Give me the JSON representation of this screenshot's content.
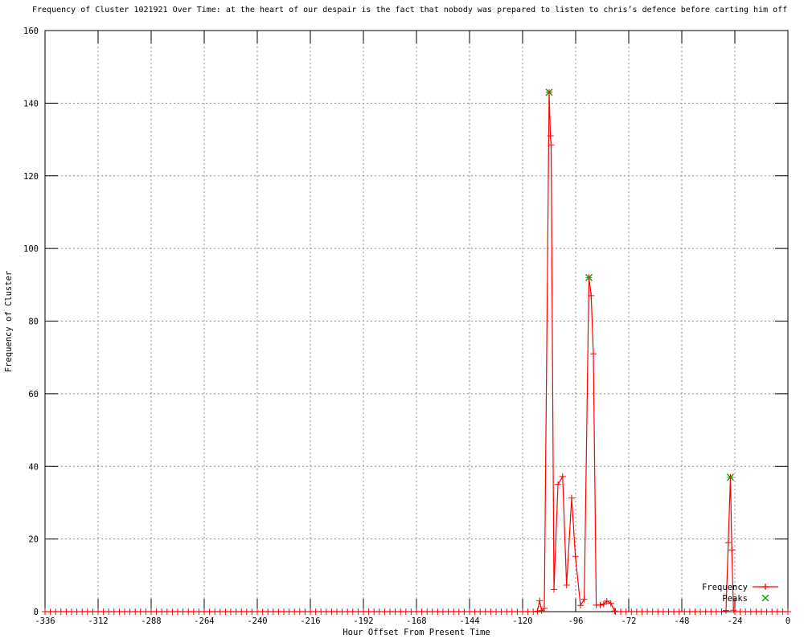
{
  "chart_data": {
    "type": "line",
    "title": "Frequency of Cluster 1021921 Over Time: at the heart of our despair is the fact that nobody was prepared to listen to chris’s defence before carting him off",
    "xlabel": "Hour Offset From Present Time",
    "ylabel": "Frequency of Cluster",
    "xlim": [
      -336,
      0
    ],
    "ylim": [
      0,
      160
    ],
    "x_tick_step": 24,
    "y_tick_step": 20,
    "x_tick_labels": [
      "-336",
      "-312",
      "-288",
      "-264",
      "-240",
      "-216",
      "-192",
      "-168",
      "-144",
      "-120",
      "-96",
      "-72",
      "-48",
      "-24",
      "0"
    ],
    "y_tick_labels": [
      "0",
      "20",
      "40",
      "60",
      "80",
      "100",
      "120",
      "140",
      "160"
    ],
    "grid": true,
    "legend_position": "inside-bottom-right",
    "grid_color": "#8c8c8c",
    "series": [
      {
        "name": "Frequency",
        "color": "#ff0000",
        "marker": "plus",
        "style": "linespoints",
        "points": [
          [
            -113.3,
            0.1
          ],
          [
            -112.3,
            3.0
          ],
          [
            -111.4,
            0.3
          ],
          [
            -110.2,
            0.9
          ],
          [
            -108.0,
            143.0
          ],
          [
            -107.4,
            131.0
          ],
          [
            -107.1,
            128.5
          ],
          [
            -105.8,
            6.1
          ],
          [
            -104.0,
            35.0
          ],
          [
            -101.9,
            37.2
          ],
          [
            -100.1,
            7.3
          ],
          [
            -97.8,
            31.3
          ],
          [
            -96.1,
            15.2
          ],
          [
            -93.8,
            1.7
          ],
          [
            -92.1,
            3.4
          ],
          [
            -90.0,
            92.0
          ],
          [
            -89.0,
            87.0
          ],
          [
            -88.0,
            71.0
          ],
          [
            -86.7,
            1.8
          ],
          [
            -84.9,
            1.8
          ],
          [
            -83.3,
            2.1
          ],
          [
            -81.9,
            2.9
          ],
          [
            -80.1,
            2.3
          ],
          [
            -78.4,
            0.2
          ],
          [
            -28.0,
            0.3
          ],
          [
            -27.0,
            19.0
          ],
          [
            -26.0,
            37.0
          ],
          [
            -25.4,
            17.0
          ],
          [
            -24.6,
            0.4
          ]
        ],
        "baseline_segments": [
          {
            "from": -336.0,
            "to": -113.4,
            "value": 0,
            "marker_spacing": 2.4
          },
          {
            "from": -78.0,
            "to": -28.8,
            "value": 0,
            "marker_spacing": 2.4
          },
          {
            "from": -24.0,
            "to": 0.0,
            "value": 0,
            "marker_spacing": 2.4
          }
        ]
      },
      {
        "name": "Peaks",
        "color": "#00a400",
        "marker": "cross",
        "style": "points",
        "points": [
          [
            -108,
            143
          ],
          [
            -90,
            92
          ],
          [
            -26,
            37
          ]
        ]
      }
    ]
  }
}
